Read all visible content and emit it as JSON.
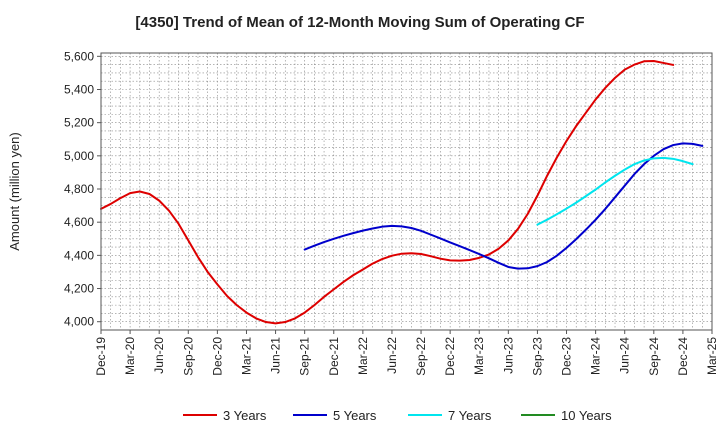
{
  "chart_data": {
    "type": "line",
    "title": "[4350]  Trend of Mean of 12-Month Moving Sum of Operating CF",
    "xlabel": "",
    "ylabel": "Amount (million yen)",
    "ylim": [
      3950,
      5620
    ],
    "y_ticks": [
      4000,
      4200,
      4400,
      4600,
      4800,
      5000,
      5200,
      5400,
      5600
    ],
    "y_tick_labels": [
      "4,000",
      "4,200",
      "4,400",
      "4,600",
      "4,800",
      "5,000",
      "5,200",
      "5,400",
      "5,600"
    ],
    "x_tick_labels": [
      "Dec-19",
      "Mar-20",
      "Jun-20",
      "Sep-20",
      "Dec-20",
      "Mar-21",
      "Jun-21",
      "Sep-21",
      "Dec-21",
      "Mar-22",
      "Jun-22",
      "Sep-22",
      "Dec-22",
      "Mar-23",
      "Jun-23",
      "Sep-23",
      "Dec-23",
      "Mar-24",
      "Jun-24",
      "Sep-24",
      "Dec-24",
      "Mar-25"
    ],
    "grid": true,
    "legend_position": "bottom",
    "series": [
      {
        "name": "3 Years",
        "color": "#dd0000",
        "start_index": 0,
        "values": [
          4680,
          4710,
          4745,
          4775,
          4785,
          4770,
          4730,
          4670,
          4590,
          4490,
          4390,
          4300,
          4225,
          4155,
          4100,
          4055,
          4020,
          3998,
          3990,
          3998,
          4020,
          4055,
          4100,
          4150,
          4195,
          4240,
          4280,
          4315,
          4350,
          4378,
          4398,
          4410,
          4413,
          4408,
          4395,
          4380,
          4370,
          4368,
          4372,
          4385,
          4405,
          4440,
          4490,
          4560,
          4650,
          4760,
          4880,
          4990,
          5090,
          5180,
          5260,
          5340,
          5410,
          5470,
          5520,
          5550,
          5570,
          5572,
          5560,
          5548
        ]
      },
      {
        "name": "5 Years",
        "color": "#0000cc",
        "start_index": 21,
        "values": [
          4435,
          4458,
          4480,
          4500,
          4518,
          4534,
          4549,
          4562,
          4573,
          4578,
          4575,
          4565,
          4548,
          4525,
          4502,
          4478,
          4455,
          4432,
          4408,
          4382,
          4355,
          4330,
          4320,
          4322,
          4335,
          4360,
          4398,
          4445,
          4498,
          4555,
          4615,
          4680,
          4750,
          4820,
          4890,
          4950,
          5000,
          5040,
          5065,
          5075,
          5072,
          5060
        ]
      },
      {
        "name": "7 Years",
        "color": "#00e5ee",
        "start_index": 45,
        "values": [
          4585,
          4615,
          4648,
          4682,
          4718,
          4757,
          4797,
          4840,
          4880,
          4917,
          4950,
          4972,
          4985,
          4988,
          4982,
          4968,
          4950
        ]
      },
      {
        "name": "10 Years",
        "color": "#228b22",
        "start_index": 0,
        "values": []
      }
    ]
  }
}
